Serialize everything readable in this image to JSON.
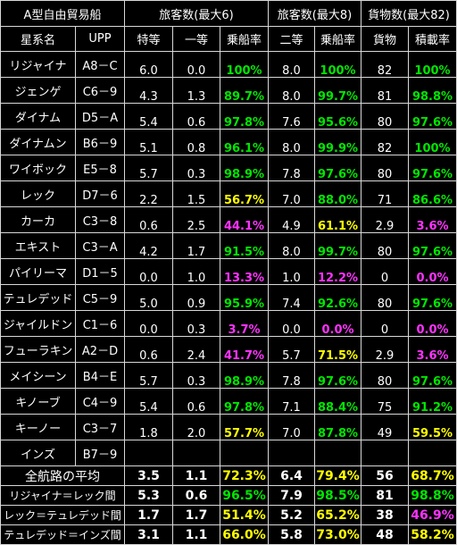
{
  "header": {
    "title": "A型自由貿易船",
    "group1": "旅客数(最大6)",
    "group2": "旅客数(最大8)",
    "group3": "貨物数(最大82)",
    "col_system": "星系名",
    "col_upp": "UPP",
    "col_c1": "特等",
    "col_c2": "一等",
    "col_c3": "乗船率",
    "col_c4": "二等",
    "col_c5": "乗船率",
    "col_c6": "貨物",
    "col_c7": "積載率"
  },
  "rows": [
    {
      "name": "リジャイナ",
      "upp": "A8－C",
      "c1": "6.0",
      "c2": "0.0",
      "c3": "100%",
      "c3c": "green",
      "c4": "8.0",
      "c5": "100%",
      "c5c": "green",
      "c6": "82",
      "c7": "100%",
      "c7c": "green"
    },
    {
      "name": "ジェンゲ",
      "upp": "C6－9",
      "c1": "4.3",
      "c2": "1.3",
      "c3": "89.7%",
      "c3c": "green",
      "c4": "8.0",
      "c5": "99.7%",
      "c5c": "green",
      "c6": "81",
      "c7": "98.8%",
      "c7c": "green"
    },
    {
      "name": "ダイナム",
      "upp": "D5－A",
      "c1": "5.4",
      "c2": "0.6",
      "c3": "97.8%",
      "c3c": "green",
      "c4": "7.6",
      "c5": "95.6%",
      "c5c": "green",
      "c6": "80",
      "c7": "97.6%",
      "c7c": "green"
    },
    {
      "name": "ダイナムン",
      "upp": "B6－9",
      "c1": "5.1",
      "c2": "0.8",
      "c3": "96.1%",
      "c3c": "green",
      "c4": "8.0",
      "c5": "99.9%",
      "c5c": "green",
      "c6": "82",
      "c7": "100%",
      "c7c": "green"
    },
    {
      "name": "ワイボック",
      "upp": "E5－8",
      "c1": "5.7",
      "c2": "0.3",
      "c3": "98.9%",
      "c3c": "green",
      "c4": "7.8",
      "c5": "97.6%",
      "c5c": "green",
      "c6": "80",
      "c7": "97.6%",
      "c7c": "green"
    },
    {
      "name": "レック",
      "upp": "D7－6",
      "c1": "2.2",
      "c2": "1.5",
      "c3": "56.7%",
      "c3c": "yellow",
      "c4": "7.0",
      "c5": "88.0%",
      "c5c": "green",
      "c6": "71",
      "c7": "86.6%",
      "c7c": "green"
    },
    {
      "name": "カーカ",
      "upp": "C3－8",
      "c1": "0.6",
      "c2": "2.5",
      "c3": "44.1%",
      "c3c": "magenta",
      "c4": "4.9",
      "c5": "61.1%",
      "c5c": "yellow",
      "c6": "2.9",
      "c7": "3.6%",
      "c7c": "magenta"
    },
    {
      "name": "エキスト",
      "upp": "C3－A",
      "c1": "4.2",
      "c2": "1.7",
      "c3": "91.5%",
      "c3c": "green",
      "c4": "8.0",
      "c5": "99.7%",
      "c5c": "green",
      "c6": "80",
      "c7": "97.6%",
      "c7c": "green"
    },
    {
      "name": "パイリーマ",
      "upp": "D1－5",
      "c1": "0.0",
      "c2": "1.0",
      "c3": "13.3%",
      "c3c": "magenta",
      "c4": "1.0",
      "c5": "12.2%",
      "c5c": "magenta",
      "c6": "0",
      "c7": "0.0%",
      "c7c": "magenta"
    },
    {
      "name": "テュレデッド",
      "upp": "C5－9",
      "c1": "5.0",
      "c2": "0.9",
      "c3": "95.9%",
      "c3c": "green",
      "c4": "7.4",
      "c5": "92.6%",
      "c5c": "green",
      "c6": "80",
      "c7": "97.6%",
      "c7c": "green"
    },
    {
      "name": "ジャイルドン",
      "upp": "C1－6",
      "c1": "0.0",
      "c2": "0.3",
      "c3": "3.7%",
      "c3c": "magenta",
      "c4": "0.0",
      "c5": "0.0%",
      "c5c": "magenta",
      "c6": "0",
      "c7": "0.0%",
      "c7c": "magenta"
    },
    {
      "name": "フューラキン",
      "upp": "A2－D",
      "c1": "0.6",
      "c2": "2.4",
      "c3": "41.7%",
      "c3c": "magenta",
      "c4": "5.7",
      "c5": "71.5%",
      "c5c": "yellow",
      "c6": "2.9",
      "c7": "3.6%",
      "c7c": "magenta"
    },
    {
      "name": "メイシーン",
      "upp": "B4－E",
      "c1": "5.7",
      "c2": "0.3",
      "c3": "98.9%",
      "c3c": "green",
      "c4": "7.8",
      "c5": "97.6%",
      "c5c": "green",
      "c6": "80",
      "c7": "97.6%",
      "c7c": "green"
    },
    {
      "name": "キノーブ",
      "upp": "C4－9",
      "c1": "5.4",
      "c2": "0.6",
      "c3": "97.8%",
      "c3c": "green",
      "c4": "7.1",
      "c5": "88.4%",
      "c5c": "green",
      "c6": "75",
      "c7": "91.2%",
      "c7c": "green"
    },
    {
      "name": "キーノー",
      "upp": "C3－7",
      "c1": "1.8",
      "c2": "2.0",
      "c3": "57.7%",
      "c3c": "yellow",
      "c4": "7.0",
      "c5": "87.8%",
      "c5c": "green",
      "c6": "49",
      "c7": "59.5%",
      "c7c": "yellow"
    },
    {
      "name": "インズ",
      "upp": "B7－9",
      "c1": "",
      "c2": "",
      "c3": "",
      "c3c": "white",
      "c4": "",
      "c5": "",
      "c5c": "white",
      "c6": "",
      "c7": "",
      "c7c": "white"
    }
  ],
  "summary": [
    {
      "name": "全航路の平均",
      "c1": "3.5",
      "c2": "1.1",
      "c3": "72.3%",
      "c3c": "yellow",
      "c4": "6.4",
      "c5": "79.4%",
      "c5c": "yellow",
      "c6": "56",
      "c7": "68.7%",
      "c7c": "yellow"
    },
    {
      "name": "リジャイナ＝レック間",
      "c1": "5.3",
      "c2": "0.6",
      "c3": "96.5%",
      "c3c": "green",
      "c4": "7.9",
      "c5": "98.5%",
      "c5c": "green",
      "c6": "81",
      "c7": "98.8%",
      "c7c": "green"
    },
    {
      "name": "レック＝テュレデッド間",
      "c1": "1.7",
      "c2": "1.7",
      "c3": "51.4%",
      "c3c": "yellow",
      "c4": "5.2",
      "c5": "65.2%",
      "c5c": "yellow",
      "c6": "38",
      "c7": "46.9%",
      "c7c": "magenta"
    },
    {
      "name": "テュレデッド＝インズ間",
      "c1": "3.1",
      "c1b": "",
      "c2": "1.1",
      "c3": "66.0%",
      "c3c": "yellow",
      "c4": "5.8",
      "c5": "73.0%",
      "c5c": "yellow",
      "c6": "48",
      "c7": "58.2%",
      "c7c": "yellow"
    }
  ]
}
